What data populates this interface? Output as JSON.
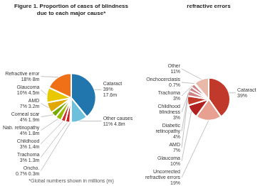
{
  "chart_data": [
    {
      "type": "pie",
      "title": [
        "Figure 1. Proportion of cases of blindness",
        "due to each major cause*"
      ],
      "annotations": [
        "*Global numbers shown in millions (m)"
      ],
      "categories": [
        "Cataract",
        "Other causes",
        "Oncho.",
        "Trachoma",
        "Childhood",
        "Nab. retinopathy",
        "Corneal scar",
        "AMD",
        "Glaucoma",
        "Refractive error"
      ],
      "values": [
        39,
        11,
        0.7,
        3,
        3,
        4,
        4,
        7,
        10,
        18
      ],
      "value_labels": [
        "39%\n17.6m",
        "11% 4.8m",
        "0.7% 0.3m",
        "3% 1.3m",
        "3% 1.4m",
        "4% 1.8m",
        "4% 1.9m",
        "7% 3.2m",
        "10% 4.5m",
        "18% 8m"
      ],
      "colors": [
        "#2176AE",
        "#6DC0DC",
        "#7B3F00",
        "#CC2020",
        "#CC3030",
        "#99BB00",
        "#77AA00",
        "#E0A800",
        "#E8C800",
        "#F07018"
      ],
      "data_labels": true
    },
    {
      "type": "pie",
      "title": "refractive errors",
      "categories": [
        "Cataract",
        "Uncorrected refractive errors",
        "Glaucoma",
        "AMD",
        "Diabetic retinopathy",
        "Childhood blindness",
        "Trachoma",
        "Onchocerciasis",
        "Other"
      ],
      "values": [
        39,
        19,
        10,
        7,
        4,
        3,
        3,
        0.7,
        11
      ],
      "value_labels": [
        "39%",
        "19%",
        "10%",
        "7%",
        "4%",
        "3%",
        "3%",
        "0.7%",
        "11%"
      ],
      "colors": [
        "#C0392B",
        "#E8A090",
        "#B22020",
        "#C0392B",
        "#D08080",
        "#D08080",
        "#D08080",
        "#C8887A",
        "#E8B8A8"
      ],
      "data_labels": true
    }
  ]
}
